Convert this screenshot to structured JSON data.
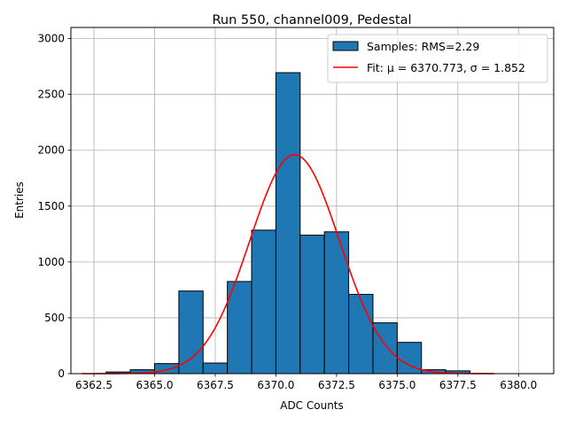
{
  "chart_data": {
    "type": "bar",
    "title": "Run 550, channel009, Pedestal",
    "xlabel": "ADC Counts",
    "ylabel": "Entries",
    "xlim": [
      6361.55,
      6381.45
    ],
    "ylim": [
      0,
      3100
    ],
    "xticks": [
      6362.5,
      6365.0,
      6367.5,
      6370.0,
      6372.5,
      6375.0,
      6377.5,
      6380.0
    ],
    "xtick_labels": [
      "6362.5",
      "6365.0",
      "6367.5",
      "6370.0",
      "6372.5",
      "6375.0",
      "6377.5",
      "6380.0"
    ],
    "yticks": [
      0,
      500,
      1000,
      1500,
      2000,
      2500,
      3000
    ],
    "ytick_labels": [
      "0",
      "500",
      "1000",
      "1500",
      "2000",
      "2500",
      "3000"
    ],
    "grid": true,
    "legend_position": "top-right",
    "histogram": {
      "name": "Samples: RMS=2.29",
      "color": "#1f77b4",
      "edge_color": "#000000",
      "bins": [
        {
          "x0": 6363.0,
          "x1": 6364.0,
          "count": 15
        },
        {
          "x0": 6364.0,
          "x1": 6365.0,
          "count": 35
        },
        {
          "x0": 6365.0,
          "x1": 6366.0,
          "count": 90
        },
        {
          "x0": 6366.0,
          "x1": 6367.0,
          "count": 740
        },
        {
          "x0": 6367.0,
          "x1": 6368.0,
          "count": 95
        },
        {
          "x0": 6368.0,
          "x1": 6369.0,
          "count": 825
        },
        {
          "x0": 6369.0,
          "x1": 6370.0,
          "count": 1285
        },
        {
          "x0": 6370.0,
          "x1": 6371.0,
          "count": 2695
        },
        {
          "x0": 6371.0,
          "x1": 6372.0,
          "count": 1240
        },
        {
          "x0": 6372.0,
          "x1": 6373.0,
          "count": 1270
        },
        {
          "x0": 6373.0,
          "x1": 6374.0,
          "count": 710
        },
        {
          "x0": 6374.0,
          "x1": 6375.0,
          "count": 455
        },
        {
          "x0": 6375.0,
          "x1": 6376.0,
          "count": 280
        },
        {
          "x0": 6376.0,
          "x1": 6377.0,
          "count": 35
        },
        {
          "x0": 6377.0,
          "x1": 6378.0,
          "count": 25
        }
      ]
    },
    "fit": {
      "name": "Fit: μ = 6370.773, σ = 1.852",
      "color": "#ff0000",
      "mu": 6370.773,
      "sigma": 1.852,
      "peak": 1960,
      "x_range": [
        6362.0,
        6379.0
      ]
    }
  }
}
